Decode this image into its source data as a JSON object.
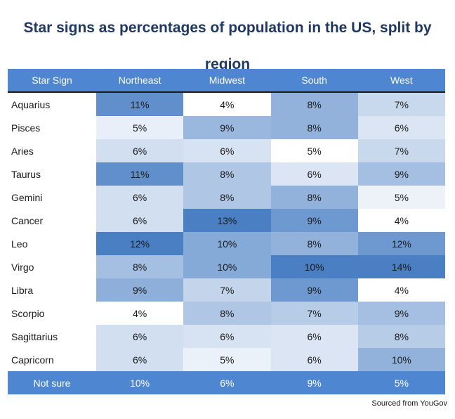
{
  "chart_data": {
    "type": "table",
    "title": "Star signs as percentages of population in the US, split by region",
    "columns": [
      "Star Sign",
      "Northeast",
      "Midwest",
      "South",
      "West"
    ],
    "rows": [
      {
        "sign": "Aquarius",
        "values": [
          "11%",
          "4%",
          "8%",
          "7%"
        ]
      },
      {
        "sign": "Pisces",
        "values": [
          "5%",
          "9%",
          "8%",
          "6%"
        ]
      },
      {
        "sign": "Aries",
        "values": [
          "6%",
          "6%",
          "5%",
          "7%"
        ]
      },
      {
        "sign": "Taurus",
        "values": [
          "11%",
          "8%",
          "6%",
          "9%"
        ]
      },
      {
        "sign": "Gemini",
        "values": [
          "6%",
          "8%",
          "8%",
          "5%"
        ]
      },
      {
        "sign": "Cancer",
        "values": [
          "6%",
          "13%",
          "9%",
          "4%"
        ]
      },
      {
        "sign": "Leo",
        "values": [
          "12%",
          "10%",
          "8%",
          "12%"
        ]
      },
      {
        "sign": "Virgo",
        "values": [
          "8%",
          "10%",
          "10%",
          "14%"
        ]
      },
      {
        "sign": "Libra",
        "values": [
          "9%",
          "7%",
          "9%",
          "4%"
        ]
      },
      {
        "sign": "Scorpio",
        "values": [
          "4%",
          "8%",
          "7%",
          "9%"
        ]
      },
      {
        "sign": "Sagittarius",
        "values": [
          "6%",
          "6%",
          "6%",
          "8%"
        ]
      },
      {
        "sign": "Capricorn",
        "values": [
          "6%",
          "5%",
          "6%",
          "10%"
        ]
      }
    ],
    "footer": {
      "label": "Not sure",
      "values": [
        "10%",
        "6%",
        "9%",
        "5%"
      ]
    },
    "source": "Sourced from YouGov"
  },
  "colors": {
    "header_bg": "#4f86d1",
    "title": "#1f3864",
    "heat_low": "#ffffff",
    "heat_high": "#4a7fc4"
  }
}
